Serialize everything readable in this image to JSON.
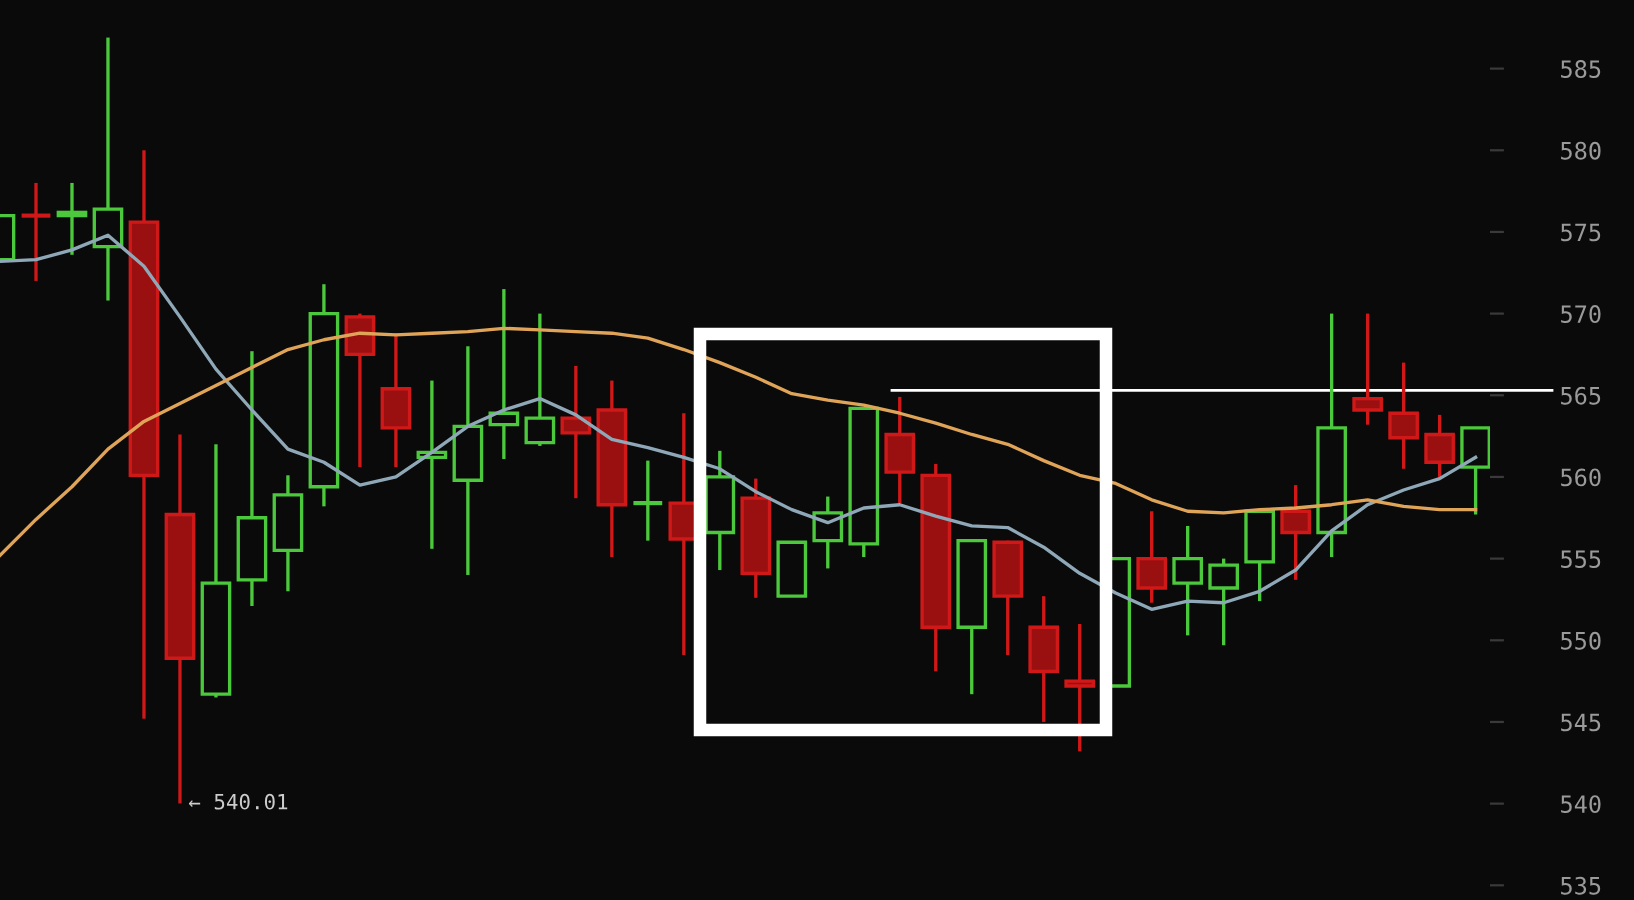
{
  "chart_data": {
    "type": "candlestick",
    "categories": [
      null,
      null,
      null,
      null,
      null,
      null,
      null,
      null,
      null,
      null,
      null,
      null,
      null,
      null,
      null,
      null,
      null,
      null,
      null,
      null,
      null,
      null,
      null,
      null,
      null,
      null,
      null,
      null,
      null,
      null,
      null,
      null,
      null,
      null,
      null,
      null,
      null,
      null,
      null,
      null,
      null,
      null
    ],
    "ohlc": [
      [
        573.3,
        576.0,
        573.3,
        576.0
      ],
      [
        576.0,
        578.0,
        572.0,
        576.0
      ],
      [
        576.0,
        578.0,
        573.6,
        576.2
      ],
      [
        574.1,
        586.9,
        570.8,
        576.4
      ],
      [
        575.6,
        580.0,
        545.2,
        560.1
      ],
      [
        557.7,
        562.6,
        540.01,
        548.9
      ],
      [
        546.7,
        562.0,
        546.5,
        553.5
      ],
      [
        553.7,
        567.7,
        552.1,
        557.5
      ],
      [
        555.5,
        560.1,
        553.0,
        558.9
      ],
      [
        559.4,
        571.8,
        558.2,
        570.0
      ],
      [
        569.8,
        570.0,
        560.6,
        567.5
      ],
      [
        565.4,
        568.8,
        560.6,
        563.0
      ],
      [
        561.2,
        565.9,
        555.6,
        561.5
      ],
      [
        559.8,
        568.0,
        554.0,
        563.1
      ],
      [
        563.2,
        571.5,
        561.1,
        563.9
      ],
      [
        562.1,
        570.0,
        561.9,
        563.6
      ],
      [
        563.6,
        566.8,
        558.7,
        562.7
      ],
      [
        564.1,
        565.9,
        555.1,
        558.3
      ],
      [
        558.4,
        561.0,
        556.1,
        558.4
      ],
      [
        558.4,
        563.9,
        549.1,
        556.2
      ],
      [
        556.6,
        561.6,
        554.3,
        560.0
      ],
      [
        558.7,
        559.9,
        552.6,
        554.1
      ],
      [
        552.7,
        556.0,
        552.7,
        556.0
      ],
      [
        556.1,
        558.8,
        554.4,
        557.8
      ],
      [
        555.9,
        564.2,
        555.1,
        564.2
      ],
      [
        562.6,
        564.9,
        558.4,
        560.3
      ],
      [
        560.1,
        560.8,
        548.1,
        550.8
      ],
      [
        550.8,
        556.1,
        546.7,
        556.1
      ],
      [
        556.0,
        556.1,
        549.1,
        552.7
      ],
      [
        550.8,
        552.7,
        545.0,
        548.1
      ],
      [
        547.5,
        551.0,
        543.2,
        547.2
      ],
      [
        547.2,
        555.0,
        547.2,
        555.0
      ],
      [
        555.0,
        557.9,
        552.3,
        553.2
      ],
      [
        553.5,
        557.0,
        550.3,
        555.0
      ],
      [
        553.2,
        555.0,
        549.7,
        554.6
      ],
      [
        554.8,
        557.9,
        552.4,
        557.9
      ],
      [
        557.9,
        559.5,
        553.7,
        556.6
      ],
      [
        556.6,
        570.0,
        555.1,
        563.0
      ],
      [
        564.8,
        570.0,
        563.2,
        564.1
      ],
      [
        563.9,
        567.0,
        560.5,
        562.4
      ],
      [
        562.6,
        563.8,
        560.0,
        560.9
      ],
      [
        560.6,
        563.0,
        557.7,
        563.0
      ]
    ],
    "colors": [
      "#4cc83c",
      "#d01818",
      "#4cc83c",
      "#4cc83c",
      "#d01818",
      "#d01818",
      "#4cc83c",
      "#4cc83c",
      "#4cc83c",
      "#4cc83c",
      "#d01818",
      "#d01818",
      "#4cc83c",
      "#4cc83c",
      "#4cc83c",
      "#4cc83c",
      "#d01818",
      "#d01818",
      "#4cc83c",
      "#d01818",
      "#4cc83c",
      "#d01818",
      "#4cc83c",
      "#4cc83c",
      "#4cc83c",
      "#d01818",
      "#d01818",
      "#4cc83c",
      "#d01818",
      "#d01818",
      "#d01818",
      "#4cc83c",
      "#d01818",
      "#4cc83c",
      "#4cc83c",
      "#4cc83c",
      "#d01818",
      "#4cc83c",
      "#d01818",
      "#d01818",
      "#d01818",
      "#4cc83c"
    ],
    "series": [
      {
        "type": "line",
        "color": "#8fa8b8",
        "values": [
          573.2,
          573.3,
          573.9,
          574.8,
          572.9,
          569.8,
          566.6,
          564.1,
          561.7,
          560.9,
          559.5,
          560.0,
          561.5,
          563.1,
          564.1,
          564.8,
          563.8,
          562.3,
          561.8,
          561.2,
          560.5,
          559.1,
          558.0,
          557.2,
          558.1,
          558.3,
          557.6,
          557.0,
          556.9,
          555.7,
          554.1,
          552.9,
          551.9,
          552.4,
          552.3,
          553.0,
          554.3,
          556.7,
          558.3,
          559.2,
          559.9,
          561.2
        ]
      },
      {
        "type": "line",
        "color": "#e0a458",
        "values": [
          555.2,
          557.4,
          559.4,
          561.7,
          563.4,
          564.5,
          565.6,
          566.7,
          567.8,
          568.4,
          568.8,
          568.7,
          568.8,
          568.9,
          569.1,
          569.0,
          568.9,
          568.8,
          568.5,
          567.8,
          567.0,
          566.1,
          565.1,
          564.7,
          564.4,
          563.9,
          563.3,
          562.6,
          562.0,
          561.0,
          560.1,
          559.6,
          558.6,
          557.9,
          557.8,
          558.0,
          558.1,
          558.3,
          558.6,
          558.2,
          558.0,
          558.0
        ]
      }
    ],
    "ylim": [
      534.1,
      589.2
    ],
    "yticks": [
      535,
      540,
      545,
      550,
      555,
      560,
      565,
      570,
      575,
      580,
      585
    ],
    "ref_lines": [
      {
        "axis": "y",
        "value": 565.3,
        "color": "#ffffff"
      }
    ],
    "annotations": [
      "← 540.01"
    ],
    "tick_labels": "y"
  }
}
